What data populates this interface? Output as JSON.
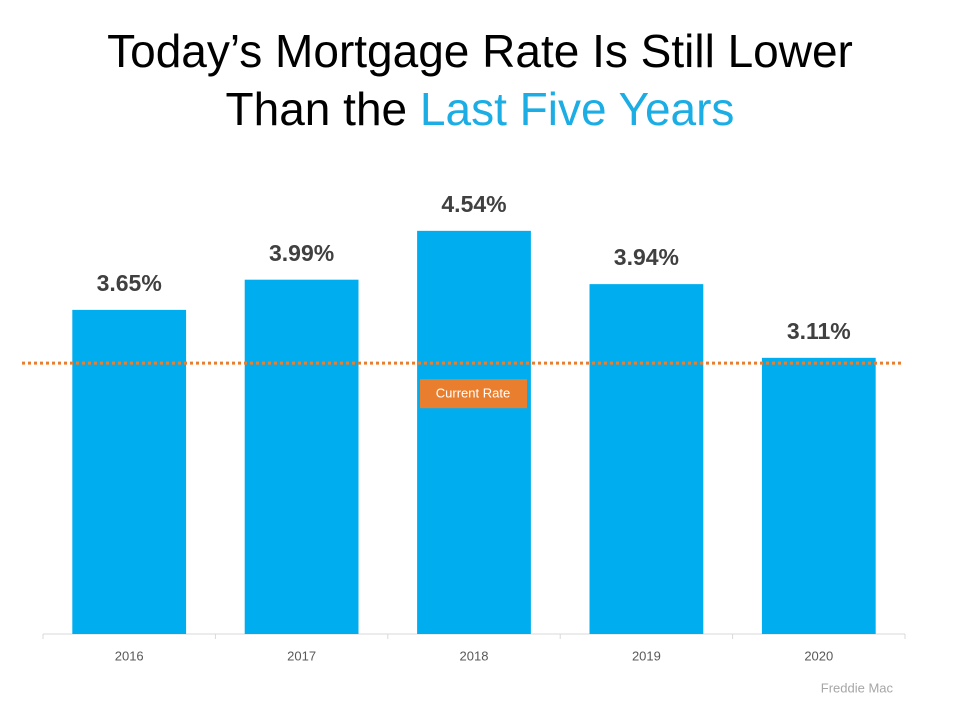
{
  "chart_data": {
    "type": "bar",
    "title": "Today’s Mortgage Rate Is Still Lower Than the",
    "title_highlight": "Last Five Years",
    "title_highlight_color": "#1cade4",
    "categories": [
      "2016",
      "2017",
      "2018",
      "2019",
      "2020"
    ],
    "values": [
      3.65,
      3.99,
      4.54,
      3.94,
      3.11
    ],
    "value_labels": [
      "3.65%",
      "3.99%",
      "4.54%",
      "3.94%",
      "3.11%"
    ],
    "color": "#00aeef",
    "ylim": [
      0,
      5
    ],
    "reference_line": {
      "value": 3.05,
      "label": "Current Rate",
      "color": "#e97f2e"
    },
    "source": "Freddie Mac"
  }
}
